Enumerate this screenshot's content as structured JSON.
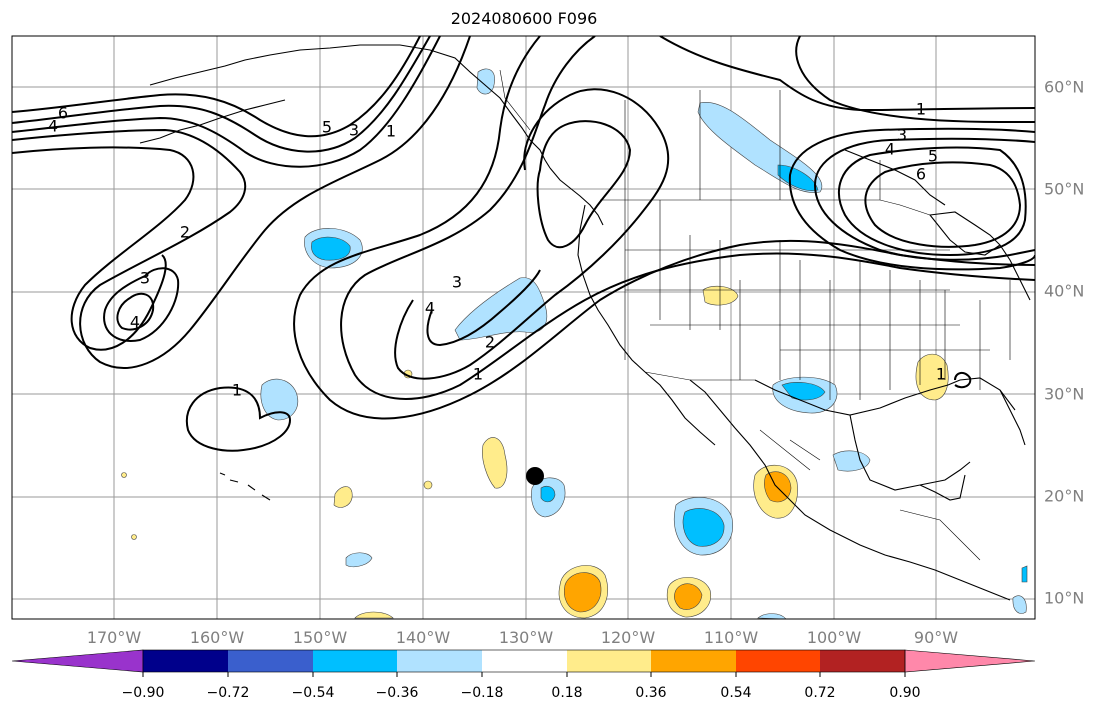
{
  "title": "2024080600 F096",
  "map": {
    "lon_labels": [
      "170°W",
      "160°W",
      "150°W",
      "140°W",
      "130°W",
      "120°W",
      "110°W",
      "100°W",
      "90°W"
    ],
    "lat_labels": [
      "60°N",
      "50°N",
      "40°N",
      "30°N",
      "20°N",
      "10°N"
    ],
    "contour_labels": [
      "6",
      "4",
      "5",
      "3",
      "1",
      "2",
      "3",
      "4",
      "1",
      "4",
      "3",
      "2",
      "1",
      "1",
      "3",
      "4",
      "5",
      "6",
      "1"
    ],
    "marker": "storm-center"
  },
  "colorbar": {
    "tick_labels": [
      "−0.90",
      "−0.72",
      "−0.54",
      "−0.36",
      "−0.18",
      "0.18",
      "0.36",
      "0.54",
      "0.72",
      "0.90"
    ],
    "colors": [
      "#9933cc",
      "#00008b",
      "#3a5fcd",
      "#00bfff",
      "#b0e2ff",
      "#ffffff",
      "#ffec8b",
      "#ffa500",
      "#ff4500",
      "#b22222",
      "#ff88aa"
    ]
  }
}
